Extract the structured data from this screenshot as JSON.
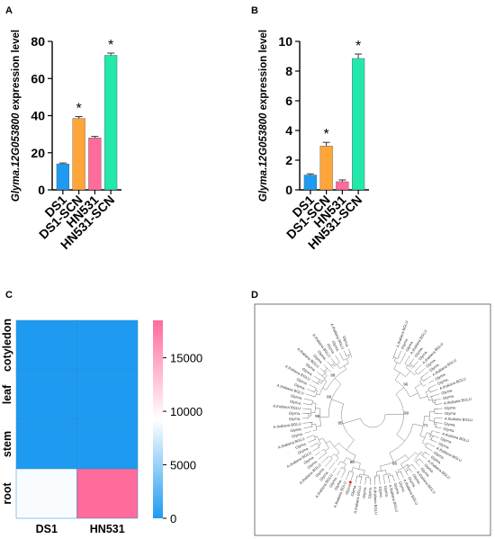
{
  "panels": {
    "A": "A",
    "B": "B",
    "C": "C",
    "D": "D"
  },
  "chart_data": [
    {
      "panel": "A",
      "type": "bar",
      "categories": [
        "DS1",
        "DS1-SCN",
        "HN531",
        "HN531-SCN"
      ],
      "values": [
        14,
        38.5,
        28,
        72.5
      ],
      "errors": [
        0.5,
        1.0,
        0.8,
        1.2
      ],
      "significance": [
        "",
        "*",
        "",
        "*"
      ],
      "colors": [
        "#1e9bf0",
        "#ffa53a",
        "#ff6b9a",
        "#23e8ac"
      ],
      "ylabel": "Glyma.12G053800 expression level",
      "yticks": [
        0,
        20,
        40,
        60,
        80
      ],
      "ylim": [
        0,
        80
      ]
    },
    {
      "panel": "B",
      "type": "bar",
      "categories": [
        "DS1",
        "DS1-SCN",
        "HN531",
        "HN531-SCN"
      ],
      "values": [
        1.0,
        2.95,
        0.55,
        8.85
      ],
      "errors": [
        0.08,
        0.25,
        0.12,
        0.3
      ],
      "significance": [
        "",
        "*",
        "",
        "*"
      ],
      "colors": [
        "#1e9bf0",
        "#ffa53a",
        "#ff6b9a",
        "#23e8ac"
      ],
      "ylabel": "Glyma.12G053800 expression level",
      "yticks": [
        0,
        2,
        4,
        6,
        8,
        10
      ],
      "ylim": [
        0,
        10
      ]
    },
    {
      "panel": "C",
      "type": "heatmap",
      "rows": [
        "cotyledon",
        "leaf",
        "stem",
        "root"
      ],
      "columns": [
        "DS1",
        "HN531"
      ],
      "values": [
        [
          0,
          0
        ],
        [
          0,
          0
        ],
        [
          0,
          0
        ],
        [
          9000,
          18500
        ]
      ],
      "colorbar_ticks": [
        0,
        5000,
        10000,
        15000
      ],
      "colorscale": [
        "#1e9bf0",
        "#ffffff",
        "#ff6b9a"
      ],
      "vmin": 0,
      "vmax": 18500
    },
    {
      "panel": "D",
      "type": "circular-tree",
      "leaf_label_prefixes": [
        "Glyma.",
        "A.thaliana BGLU"
      ],
      "highlight_color": "#ff0000",
      "bootstrap_values_shown": [
        "99",
        "98",
        "97",
        "96",
        "95",
        "88",
        "86",
        "71",
        "66",
        "56",
        "51"
      ]
    }
  ]
}
